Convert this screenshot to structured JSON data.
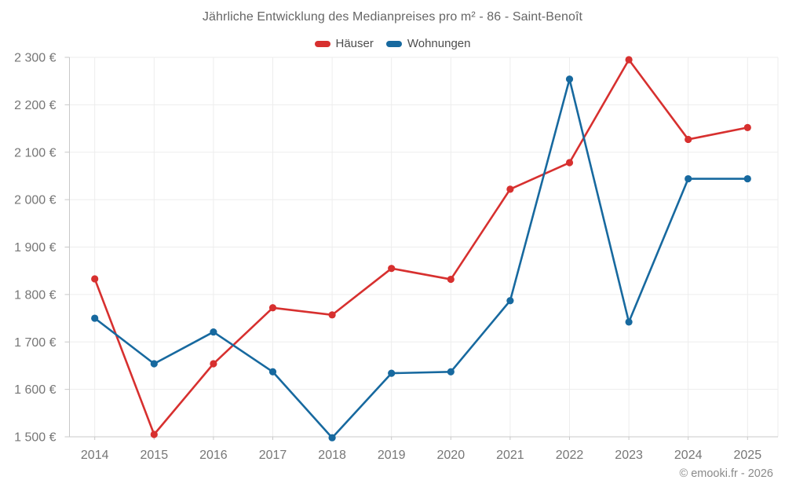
{
  "title": "Jährliche Entwicklung des Medianpreises pro m² - 86 - Saint-Benoît",
  "legend": [
    {
      "label": "Häuser",
      "color": "#d7302f"
    },
    {
      "label": "Wohnungen",
      "color": "#17699f"
    }
  ],
  "copyright": "© emooki.fr - 2026",
  "colors": {
    "hauser": "#d7302f",
    "wohnungen": "#17699f",
    "gridline": "#ededed",
    "axis": "#c9c9c9",
    "tick_text": "#767676"
  },
  "chart_data": {
    "type": "line",
    "title": "Jährliche Entwicklung des Medianpreises pro m² - 86 - Saint-Benoît",
    "xlabel": "",
    "ylabel": "",
    "categories": [
      "2014",
      "2015",
      "2016",
      "2017",
      "2018",
      "2019",
      "2020",
      "2021",
      "2022",
      "2023",
      "2024",
      "2025"
    ],
    "series": [
      {
        "name": "Häuser",
        "color": "#d7302f",
        "values": [
          1833,
          1505,
          1654,
          1772,
          1757,
          1855,
          1832,
          2022,
          2078,
          2295,
          2127,
          2152
        ]
      },
      {
        "name": "Wohnungen",
        "color": "#17699f",
        "values": [
          1750,
          1654,
          1721,
          1637,
          1498,
          1634,
          1637,
          1787,
          2254,
          1742,
          2044,
          2044
        ]
      }
    ],
    "ylim": [
      1500,
      2300
    ],
    "ytick_step": 100,
    "ytick_labels": [
      "1 500 €",
      "1 600 €",
      "1 700 €",
      "1 800 €",
      "1 900 €",
      "2 000 €",
      "2 100 €",
      "2 200 €",
      "2 300 €"
    ],
    "grid": true,
    "legend_position": "top",
    "unit": "€"
  }
}
